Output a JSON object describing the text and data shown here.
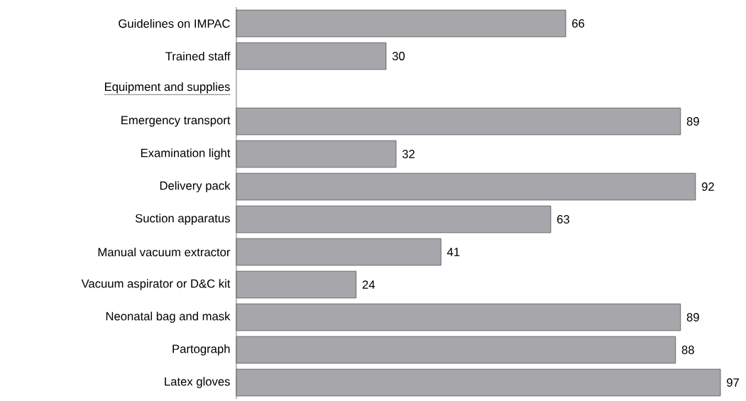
{
  "chart_data": {
    "type": "bar",
    "orientation": "horizontal",
    "categories": [
      "Guidelines on IMPAC",
      "Trained staff",
      "Equipment and supplies",
      "Emergency transport",
      "Examination light",
      "Delivery pack",
      "Suction apparatus",
      "Manual vacuum extractor",
      "Vacuum aspirator or D&C kit",
      "Neonatal bag and mask",
      "Partograph",
      "Latex gloves"
    ],
    "values": [
      66,
      30,
      null,
      89,
      32,
      92,
      63,
      41,
      24,
      89,
      88,
      97
    ],
    "color": "#a6a6ab",
    "data_labels": true
  }
}
